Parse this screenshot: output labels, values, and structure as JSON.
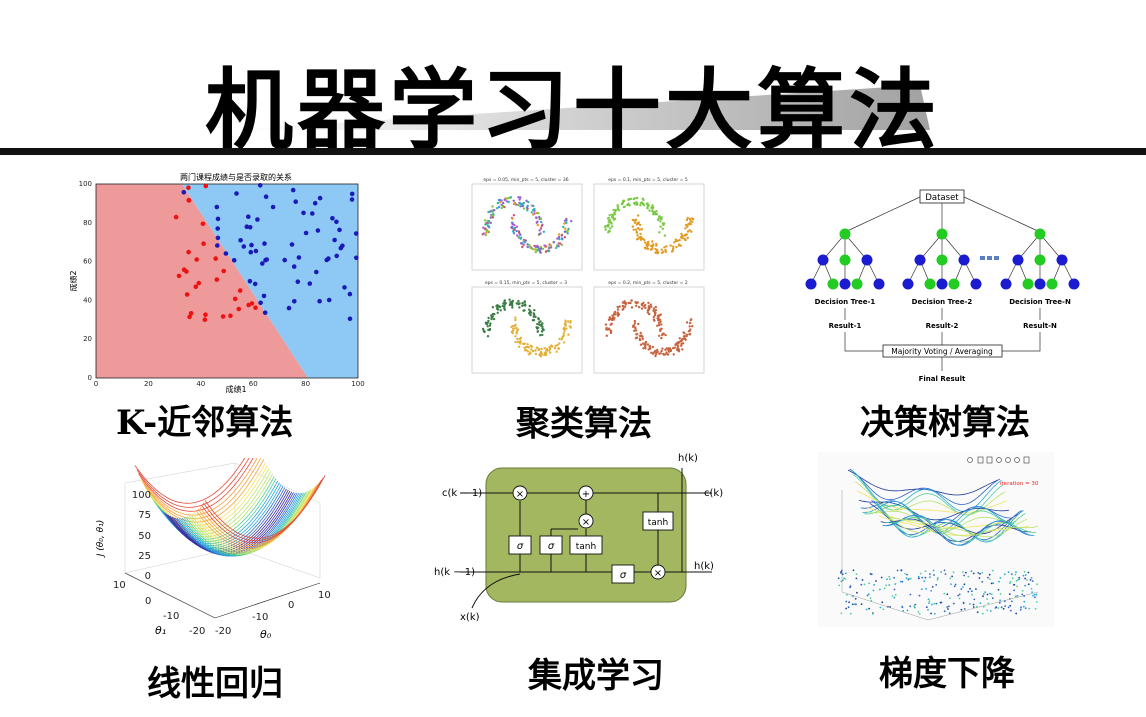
{
  "title": "机器学习十大算法",
  "panels": {
    "knn": {
      "caption": "K-近邻算法",
      "chart_title": "两门课程成绩与是否录取的关系",
      "xlabel": "成绩1",
      "ylabel": "成绩2",
      "xticks": [
        "0",
        "20",
        "40",
        "60",
        "80",
        "100"
      ],
      "yticks": [
        "0",
        "20",
        "40",
        "60",
        "80",
        "100"
      ]
    },
    "cluster": {
      "caption": "聚类算法",
      "subtitles": [
        "eps = 0.05, min_pts = 5, cluster = 36",
        "eps = 0.1, min_pts = 5, cluster = 5",
        "eps = 0.15, min_pts = 5, cluster = 3",
        "eps = 0.2, min_pts = 5, cluster = 2"
      ]
    },
    "tree": {
      "caption": "决策树算法",
      "dataset": "Dataset",
      "trees": [
        "Decision Tree-1",
        "Decision Tree-2",
        "Decision Tree-N"
      ],
      "results": [
        "Result-1",
        "Result-2",
        "Result-N"
      ],
      "vote": "Majority Voting / Averaging",
      "final": "Final Result"
    },
    "linreg": {
      "caption": "线性回归",
      "zticks": [
        "100",
        "75",
        "50",
        "25",
        "0"
      ],
      "zlabel": "J (θ₀, θ₁)",
      "t1ticks": [
        "10",
        "0",
        "-10",
        "-20"
      ],
      "t0ticks": [
        "-20",
        "-10",
        "0",
        "10"
      ],
      "t1label": "θ₁",
      "t0label": "θ₀"
    },
    "ensemble": {
      "caption": "集成学习",
      "hk_top": "h(k)",
      "ck_prev": "c(k − 1)",
      "ck": "c(k)",
      "hk_prev": "h(k − 1)",
      "hk": "h(k)",
      "xk": "x(k)",
      "sigma": "σ",
      "tanh": "tanh",
      "times": "×",
      "plus": "+"
    },
    "gd": {
      "caption": "梯度下降",
      "iteration": "iteration = 30"
    }
  }
}
